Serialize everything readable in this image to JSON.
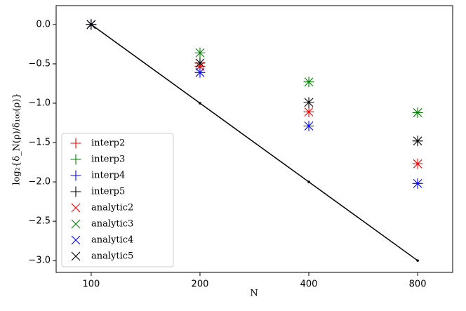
{
  "chart_data": {
    "type": "scatter",
    "xlabel": "N",
    "ylabel": "log₂{δ_N(ρ)/δ₁₀₀(ρ)}",
    "x": [
      100,
      200,
      400,
      800
    ],
    "xscale": "log",
    "xlim": [
      80,
      1000
    ],
    "xticks": [
      100,
      200,
      400,
      800
    ],
    "ylim": [
      -3.15,
      0.24
    ],
    "yticks": [
      {
        "value": 0,
        "label": "0.0"
      },
      {
        "value": -0.5,
        "label": "−0.5"
      },
      {
        "value": -1,
        "label": "−1.0"
      },
      {
        "value": -1.5,
        "label": "−1.5"
      },
      {
        "value": -2,
        "label": "−2.0"
      },
      {
        "value": -2.5,
        "label": "−2.5"
      },
      {
        "value": -3,
        "label": "−3.0"
      }
    ],
    "legend": "lower left",
    "reference": {
      "color": "#000000",
      "x": [
        100,
        200,
        400,
        800
      ],
      "values": [
        0,
        -1,
        -2,
        -3
      ]
    },
    "series": [
      {
        "name": "interp2",
        "marker": "plus",
        "color": "#ff0000",
        "values": [
          0,
          -0.53,
          -1.11,
          -1.77
        ]
      },
      {
        "name": "interp3",
        "marker": "plus",
        "color": "#008000",
        "values": [
          0,
          -0.36,
          -0.73,
          -1.12
        ]
      },
      {
        "name": "interp4",
        "marker": "plus",
        "color": "#0000ff",
        "values": [
          0,
          -0.61,
          -1.29,
          -2.02
        ]
      },
      {
        "name": "interp5",
        "marker": "plus",
        "color": "#000000",
        "values": [
          0,
          -0.49,
          -0.99,
          -1.48
        ]
      },
      {
        "name": "analytic2",
        "marker": "x",
        "color": "#ff0000",
        "values": [
          0,
          -0.53,
          -1.11,
          -1.77
        ]
      },
      {
        "name": "analytic3",
        "marker": "x",
        "color": "#008000",
        "values": [
          0,
          -0.36,
          -0.73,
          -1.12
        ]
      },
      {
        "name": "analytic4",
        "marker": "x",
        "color": "#0000ff",
        "values": [
          0,
          -0.61,
          -1.29,
          -2.02
        ]
      },
      {
        "name": "analytic5",
        "marker": "x",
        "color": "#000000",
        "values": [
          0,
          -0.49,
          -0.99,
          -1.48
        ]
      }
    ]
  }
}
